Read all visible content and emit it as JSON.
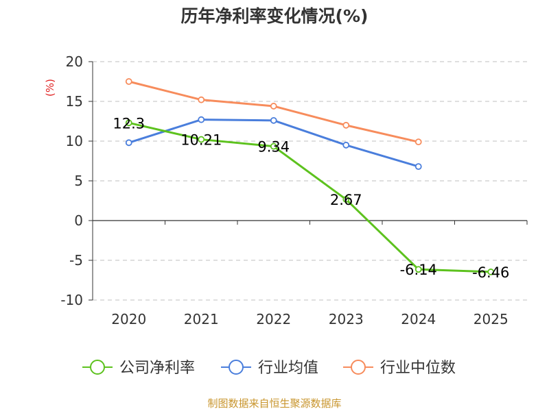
{
  "chart_data": {
    "type": "line",
    "title": "历年净利率变化情况(%)",
    "ylabel": "(%)",
    "xlabel": "",
    "categories": [
      "2020",
      "2021",
      "2022",
      "2023",
      "2024",
      "2025"
    ],
    "ylim": [
      -10,
      20
    ],
    "yticks": [
      20,
      15,
      10,
      5,
      0,
      -5,
      -10
    ],
    "grid": true,
    "legend_position": "bottom",
    "series": [
      {
        "name": "公司净利率",
        "color": "#5dc21e",
        "values": [
          12.3,
          10.21,
          9.34,
          2.67,
          -6.14,
          -6.46
        ],
        "data_labels": [
          "12.3",
          "10.21",
          "9.34",
          "2.67",
          "-6.14",
          "-6.46"
        ]
      },
      {
        "name": "行业均值",
        "color": "#4a7edc",
        "values": [
          9.8,
          12.7,
          12.6,
          9.5,
          6.8,
          null
        ]
      },
      {
        "name": "行业中位数",
        "color": "#f78c5c",
        "values": [
          17.5,
          15.2,
          14.4,
          12.0,
          9.9,
          null
        ]
      }
    ]
  },
  "footer": "制图数据来自恒生聚源数据库"
}
